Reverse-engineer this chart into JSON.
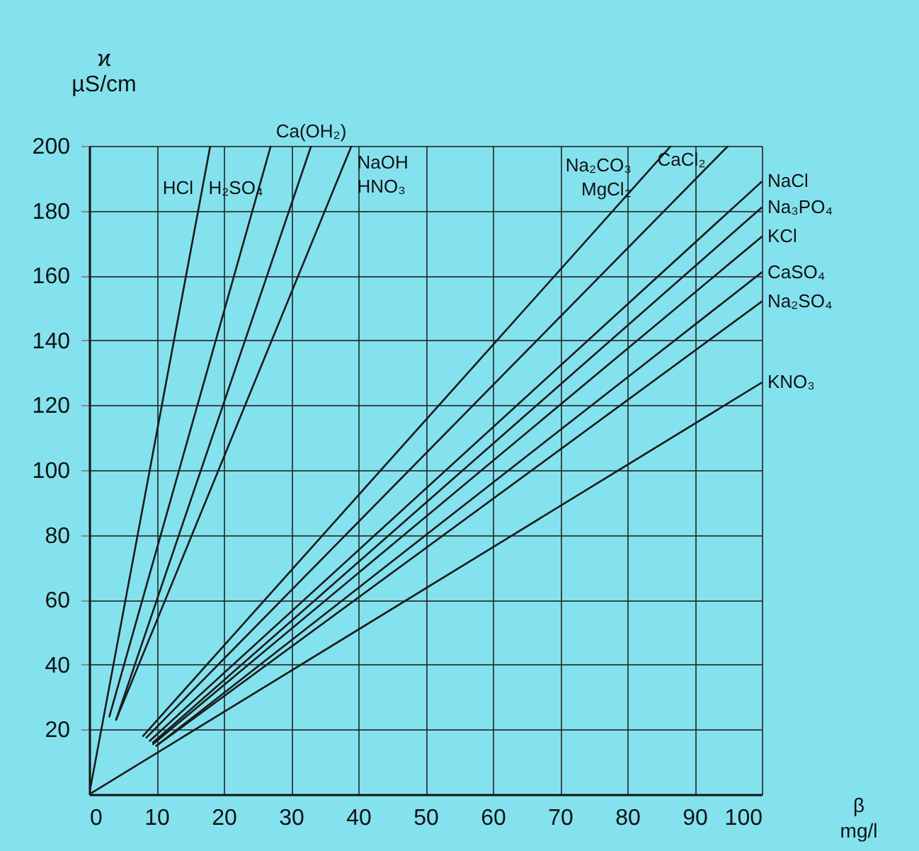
{
  "chart_data": {
    "type": "line",
    "xlabel": "β\nmg/l",
    "ylabel": "ϰ\nµS/cm",
    "xlim": [
      0,
      100
    ],
    "xticks": [
      0,
      10,
      20,
      30,
      40,
      50,
      60,
      70,
      80,
      90,
      100
    ],
    "ylim": [
      0,
      200
    ],
    "yticks": [
      20,
      40,
      60,
      80,
      100,
      120,
      140,
      160,
      180,
      200
    ],
    "grid": true,
    "series": [
      {
        "name": "HCl",
        "color": "#1a1a1a",
        "x": [
          0,
          18
        ],
        "values": [
          0,
          200
        ]
      },
      {
        "name": "H₂SO₄",
        "color": "#1a1a1a",
        "x": [
          3,
          27
        ],
        "values": [
          24,
          200
        ]
      },
      {
        "name": "Ca(OH₂)",
        "color": "#1a1a1a",
        "x": [
          4,
          33
        ],
        "values": [
          23,
          200
        ]
      },
      {
        "name": "NaOH\nHNO₃",
        "color": "#1a1a1a",
        "x": [
          4,
          39
        ],
        "values": [
          23,
          200
        ]
      },
      {
        "name": "Na₂CO₃\nMgCl₂",
        "color": "#1a1a1a",
        "x": [
          8,
          86.5
        ],
        "values": [
          18,
          200
        ]
      },
      {
        "name": "CaCl₂",
        "color": "#1a1a1a",
        "x": [
          8.5,
          95
        ],
        "values": [
          17.5,
          200
        ]
      },
      {
        "name": "NaCl",
        "color": "#1a1a1a",
        "x": [
          9,
          100
        ],
        "values": [
          16.5,
          189
        ]
      },
      {
        "name": "Na₃PO₄",
        "color": "#1a1a1a",
        "x": [
          9.5,
          100
        ],
        "values": [
          16,
          181
        ]
      },
      {
        "name": "KCl",
        "color": "#1a1a1a",
        "x": [
          9.5,
          100
        ],
        "values": [
          15.5,
          172
        ]
      },
      {
        "name": "CaSO₄",
        "color": "#1a1a1a",
        "x": [
          10,
          100
        ],
        "values": [
          15,
          161
        ]
      },
      {
        "name": "Na₂SO₄",
        "color": "#1a1a1a",
        "x": [
          10,
          100
        ],
        "values": [
          15,
          152
        ]
      },
      {
        "name": "KNO₃",
        "color": "#1a1a1a",
        "x": [
          0,
          100
        ],
        "values": [
          0,
          127
        ]
      }
    ]
  }
}
